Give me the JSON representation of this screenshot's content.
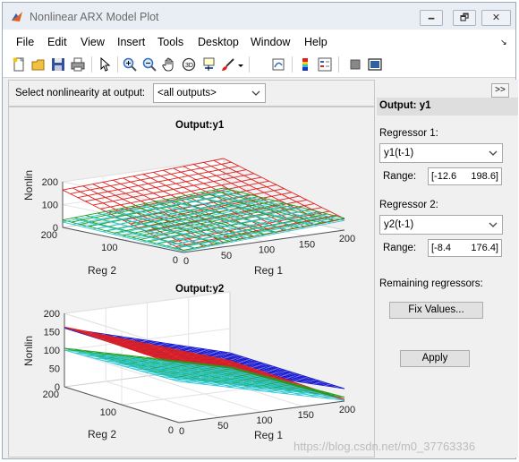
{
  "window": {
    "title": "Nonlinear ARX Model Plot",
    "controls": [
      "🗕",
      "🗗",
      "✕"
    ]
  },
  "menu": {
    "items": [
      "File",
      "Edit",
      "View",
      "Insert",
      "Tools",
      "Desktop",
      "Window",
      "Help"
    ],
    "overflow": "↘"
  },
  "toolbar": {
    "icons": [
      "new-figure-icon",
      "open-file-icon",
      "save-icon",
      "print-icon",
      "pointer-icon",
      "zoom-in-icon",
      "zoom-out-icon",
      "pan-icon",
      "rotate-3d-icon",
      "data-cursor-icon",
      "brush-icon",
      "link-plot-icon",
      "colorbar-icon",
      "legend-icon",
      "hide-plot-tools-icon",
      "show-plot-tools-icon"
    ]
  },
  "selector": {
    "label": "Select nonlinearity at output:",
    "value": "<all outputs>"
  },
  "plots": [
    {
      "title": "Output:y1",
      "zlabel": "Nonlin",
      "xlabel": "Reg 1",
      "ylabel": "Reg 2",
      "zticks": [
        "200",
        "100",
        "0"
      ],
      "xticks": [
        "0",
        "50",
        "100",
        "150",
        "200"
      ],
      "yticks": [
        "0",
        "100",
        "200"
      ]
    },
    {
      "title": "Output:y2",
      "zlabel": "Nonlin",
      "xlabel": "Reg 1",
      "ylabel": "Reg 2",
      "zticks": [
        "200",
        "150",
        "100",
        "50",
        "0"
      ],
      "xticks": [
        "0",
        "50",
        "100",
        "150",
        "200"
      ],
      "yticks": [
        "0",
        "100",
        "200"
      ]
    }
  ],
  "side": {
    "header": "Output: y1",
    "expand": ">>",
    "reg1": {
      "label": "Regressor 1:",
      "value": "y1(t-1)",
      "range_label": "Range:",
      "range_lo": "[-12.6",
      "range_hi": "198.6]"
    },
    "reg2": {
      "label": "Regressor 2:",
      "value": "y2(t-1)",
      "range_label": "Range:",
      "range_lo": "[-8.4",
      "range_hi": "176.4]"
    },
    "remaining": "Remaining regressors:",
    "fix_values": "Fix Values...",
    "apply": "Apply"
  },
  "watermark": "https://blog.csdn.net/m0_37763336",
  "colors": {
    "mesh_red": "#e02020",
    "mesh_green": "#20a020",
    "mesh_cyan": "#30c8d8",
    "mesh_blue": "#1818d0"
  }
}
